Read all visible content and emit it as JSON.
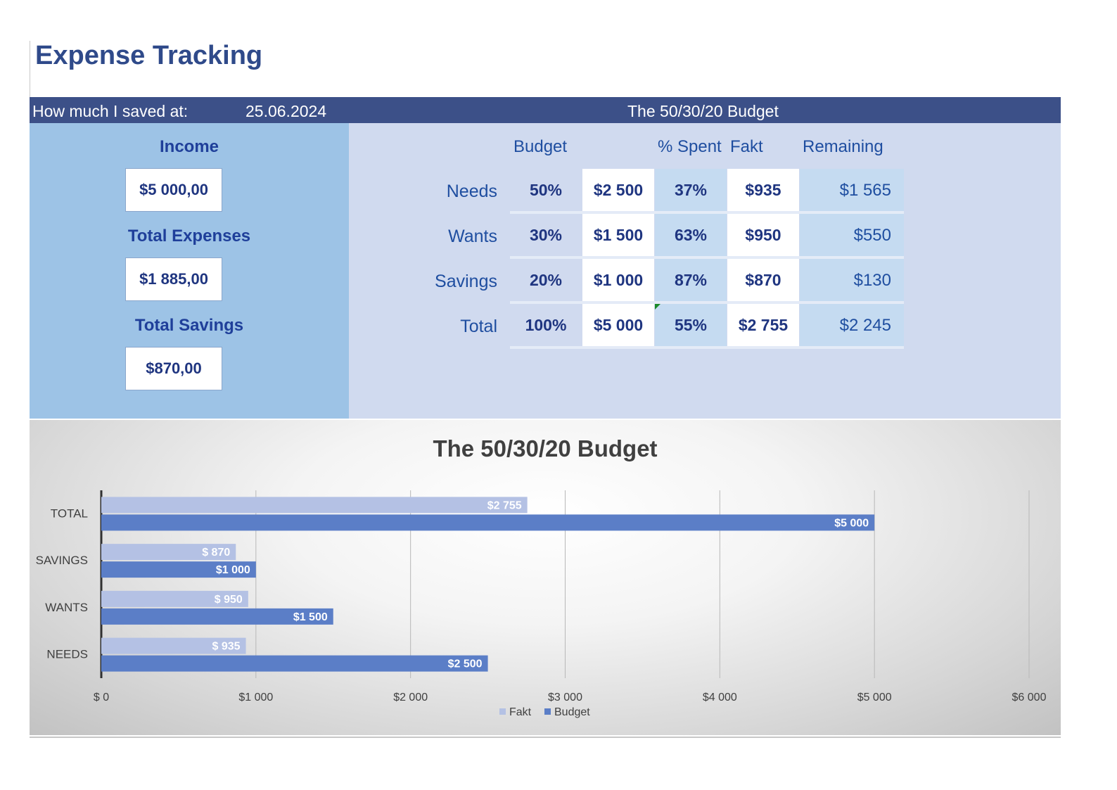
{
  "page": {
    "title": "Expense Tracking"
  },
  "header": {
    "saved_label": "How much I saved at:",
    "date": "25.06.2024",
    "budget_title": "The 50/30/20 Budget"
  },
  "summary": {
    "income_label": "Income",
    "income_value": "$5 000,00",
    "expenses_label": "Total Expenses",
    "expenses_value": "$1 885,00",
    "savings_label": "Total Savings",
    "savings_value": "$870,00"
  },
  "budget_table": {
    "headers": {
      "budget": "Budget",
      "spent": "% Spent",
      "fakt": "Fakt",
      "remaining": "Remaining"
    },
    "rows": [
      {
        "label": "Needs",
        "pct": "50%",
        "budget": "$2 500",
        "spent": "37%",
        "fakt": "$935",
        "remaining": "$1 565"
      },
      {
        "label": "Wants",
        "pct": "30%",
        "budget": "$1 500",
        "spent": "63%",
        "fakt": "$950",
        "remaining": "$550"
      },
      {
        "label": "Savings",
        "pct": "20%",
        "budget": "$1 000",
        "spent": "87%",
        "fakt": "$870",
        "remaining": "$130"
      },
      {
        "label": "Total",
        "pct": "100%",
        "budget": "$5 000",
        "spent": "55%",
        "fakt": "$2 755",
        "remaining": "$2 245"
      }
    ]
  },
  "colors": {
    "header_band": "#3c5088",
    "summary_panel": "#9dc3e6",
    "budget_panel": "#d0daef",
    "fakt_bar": "#b4c1e4",
    "budget_bar": "#5b7ec7"
  },
  "chart_data": {
    "type": "bar",
    "orientation": "horizontal",
    "title": "The 50/30/20 Budget",
    "categories": [
      "TOTAL",
      "SAVINGS",
      "WANTS",
      "NEEDS"
    ],
    "series": [
      {
        "name": "Fakt",
        "values": [
          2755,
          870,
          950,
          935
        ],
        "labels": [
          "$2 755",
          "$ 870",
          "$ 950",
          "$ 935"
        ],
        "color": "#b4c1e4"
      },
      {
        "name": "Budget",
        "values": [
          5000,
          1000,
          1500,
          2500
        ],
        "labels": [
          "$5 000",
          "$1 000",
          "$1 500",
          "$2 500"
        ],
        "color": "#5b7ec7"
      }
    ],
    "xlim": [
      0,
      6000
    ],
    "x_ticks": [
      {
        "value": 0,
        "label": "$ 0"
      },
      {
        "value": 1000,
        "label": "$1 000"
      },
      {
        "value": 2000,
        "label": "$2 000"
      },
      {
        "value": 3000,
        "label": "$3 000"
      },
      {
        "value": 4000,
        "label": "$4 000"
      },
      {
        "value": 5000,
        "label": "$5 000"
      },
      {
        "value": 6000,
        "label": "$6 000"
      }
    ],
    "grid": true,
    "legend": "bottom"
  }
}
